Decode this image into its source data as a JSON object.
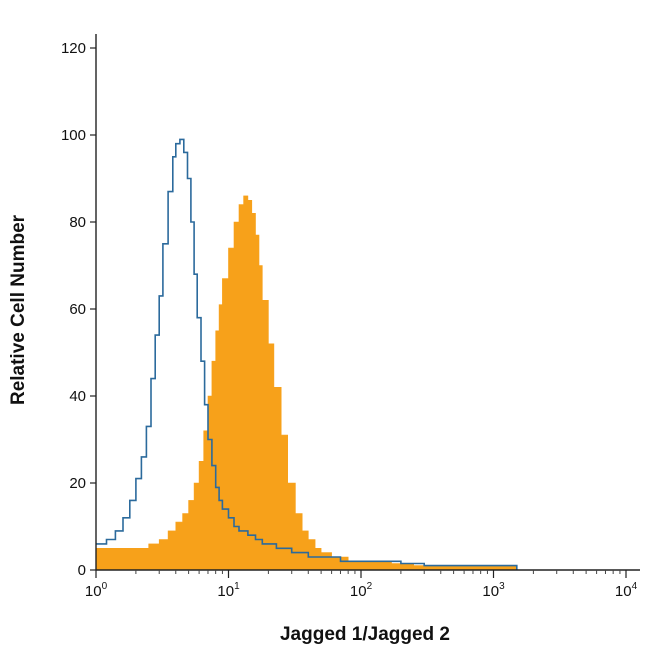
{
  "chart_data": {
    "type": "area",
    "xlabel": "Jagged 1/Jagged 2",
    "ylabel": "Relative Cell Number",
    "x_scale": "log",
    "xlim": [
      1,
      10000
    ],
    "ylim": [
      0,
      120
    ],
    "y_ticks": [
      0,
      20,
      40,
      60,
      80,
      100,
      120
    ],
    "x_ticks": [
      {
        "base": "10",
        "exp": "0",
        "value": 1
      },
      {
        "base": "10",
        "exp": "1",
        "value": 10
      },
      {
        "base": "10",
        "exp": "2",
        "value": 100
      },
      {
        "base": "10",
        "exp": "3",
        "value": 1000
      },
      {
        "base": "10",
        "exp": "4",
        "value": 10000
      }
    ],
    "grid": false,
    "series": [
      {
        "style": "outline",
        "color": "#2b6a9c",
        "x": [
          1,
          1.2,
          1.4,
          1.6,
          1.8,
          2.0,
          2.2,
          2.4,
          2.6,
          2.8,
          3.0,
          3.2,
          3.5,
          3.8,
          4.0,
          4.3,
          4.6,
          4.9,
          5.2,
          5.5,
          5.8,
          6.2,
          6.6,
          7.0,
          7.5,
          8.0,
          8.5,
          9.0,
          10,
          11,
          12,
          14,
          16,
          18,
          20,
          23,
          26,
          30,
          35,
          40,
          50,
          60,
          70,
          80,
          100,
          150,
          200,
          300,
          500,
          700,
          1000,
          1500
        ],
        "y": [
          6,
          7,
          9,
          12,
          16,
          21,
          26,
          33,
          44,
          54,
          63,
          75,
          87,
          95,
          98,
          99,
          96,
          90,
          80,
          68,
          58,
          48,
          38,
          30,
          24,
          19,
          16,
          14,
          12,
          10,
          9,
          8,
          7,
          6,
          6,
          5,
          5,
          4,
          4,
          3,
          3,
          3,
          2,
          2,
          2,
          2,
          1.5,
          1,
          1,
          1,
          1,
          0
        ]
      },
      {
        "style": "filled",
        "color": "#f7a11a",
        "x": [
          1,
          1.5,
          2,
          2.5,
          3,
          3.5,
          4,
          4.5,
          5,
          5.5,
          6,
          6.5,
          7,
          7.5,
          8,
          8.5,
          9,
          10,
          11,
          12,
          13,
          14,
          15,
          16,
          17,
          18,
          20,
          22,
          25,
          28,
          32,
          36,
          40,
          45,
          50,
          60,
          70,
          80,
          100,
          130,
          170,
          250,
          350,
          500,
          800,
          1200,
          1500
        ],
        "y": [
          5,
          5,
          5,
          6,
          7,
          9,
          11,
          13,
          16,
          20,
          25,
          32,
          40,
          48,
          55,
          61,
          67,
          74,
          80,
          84,
          86,
          85,
          82,
          77,
          70,
          62,
          52,
          42,
          31,
          20,
          13,
          9,
          7,
          5,
          4,
          3,
          3,
          2,
          2,
          2,
          1.5,
          1,
          1,
          1,
          1,
          1,
          0
        ]
      }
    ]
  }
}
